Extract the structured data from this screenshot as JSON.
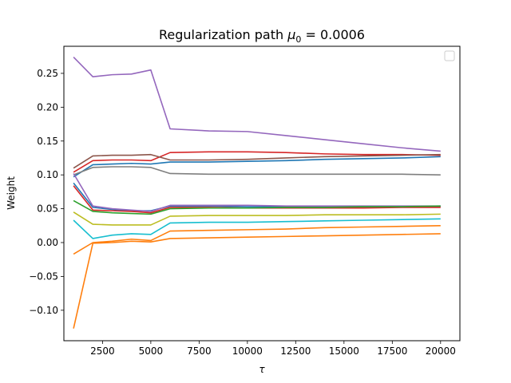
{
  "chart_data": {
    "type": "line",
    "title_prefix": "Regularization path ",
    "title_symbol": "μ",
    "title_subscript": "0",
    "title_suffix": " = 0.0006",
    "xlabel": "τ",
    "ylabel": "Weight",
    "xlim": [
      500,
      21000
    ],
    "ylim": [
      -0.145,
      0.29
    ],
    "x_ticks": [
      2500,
      5000,
      7500,
      10000,
      12500,
      15000,
      17500,
      20000
    ],
    "y_ticks": [
      -0.1,
      -0.05,
      0.0,
      0.05,
      0.1,
      0.15,
      0.2,
      0.25
    ],
    "x_tick_labels": [
      "2500",
      "5000",
      "7500",
      "10000",
      "12500",
      "15000",
      "17500",
      "20000"
    ],
    "y_tick_labels": [
      "−0.10",
      "−0.05",
      "0.00",
      "0.05",
      "0.10",
      "0.15",
      "0.20",
      "0.25"
    ],
    "legend": "upper right (empty)",
    "grid": false,
    "x": [
      1000,
      2000,
      3000,
      4000,
      5000,
      6000,
      8000,
      10000,
      12000,
      14000,
      16000,
      18000,
      20000
    ],
    "series": [
      {
        "color": "#9467bd",
        "values": [
          0.274,
          0.245,
          0.248,
          0.249,
          0.255,
          0.168,
          0.165,
          0.164,
          0.158,
          0.152,
          0.146,
          0.14,
          0.135
        ]
      },
      {
        "color": "#d62728",
        "values": [
          0.104,
          0.121,
          0.122,
          0.122,
          0.121,
          0.133,
          0.134,
          0.134,
          0.133,
          0.131,
          0.13,
          0.13,
          0.129
        ]
      },
      {
        "color": "#8c564b",
        "values": [
          0.11,
          0.128,
          0.129,
          0.129,
          0.13,
          0.122,
          0.122,
          0.123,
          0.125,
          0.127,
          0.128,
          0.129,
          0.13
        ]
      },
      {
        "color": "#1f77b4",
        "values": [
          0.097,
          0.115,
          0.116,
          0.117,
          0.116,
          0.119,
          0.119,
          0.12,
          0.121,
          0.123,
          0.124,
          0.125,
          0.127
        ]
      },
      {
        "color": "#7f7f7f",
        "values": [
          0.1,
          0.111,
          0.112,
          0.112,
          0.111,
          0.102,
          0.101,
          0.101,
          0.101,
          0.101,
          0.101,
          0.101,
          0.1
        ]
      },
      {
        "color": "#1f77b4",
        "values": [
          0.088,
          0.052,
          0.049,
          0.047,
          0.047,
          0.054,
          0.054,
          0.053,
          0.053,
          0.053,
          0.053,
          0.053,
          0.053
        ]
      },
      {
        "color": "#9467bd",
        "values": [
          0.102,
          0.054,
          0.05,
          0.048,
          0.046,
          0.055,
          0.055,
          0.055,
          0.054,
          0.054,
          0.054,
          0.054,
          0.054
        ]
      },
      {
        "color": "#d62728",
        "values": [
          0.084,
          0.048,
          0.047,
          0.046,
          0.044,
          0.052,
          0.052,
          0.051,
          0.051,
          0.051,
          0.051,
          0.052,
          0.052
        ]
      },
      {
        "color": "#2ca02c",
        "values": [
          0.062,
          0.046,
          0.044,
          0.043,
          0.042,
          0.05,
          0.051,
          0.051,
          0.052,
          0.052,
          0.053,
          0.053,
          0.054
        ]
      },
      {
        "color": "#bcbd22",
        "values": [
          0.045,
          0.027,
          0.026,
          0.026,
          0.026,
          0.039,
          0.04,
          0.04,
          0.04,
          0.041,
          0.041,
          0.041,
          0.042
        ]
      },
      {
        "color": "#17becf",
        "values": [
          0.033,
          0.006,
          0.011,
          0.013,
          0.012,
          0.029,
          0.03,
          0.03,
          0.031,
          0.032,
          0.033,
          0.034,
          0.035
        ]
      },
      {
        "color": "#ff7f0e",
        "values": [
          -0.017,
          0.0,
          0.002,
          0.005,
          0.003,
          0.017,
          0.018,
          0.019,
          0.02,
          0.022,
          0.023,
          0.024,
          0.025
        ]
      },
      {
        "color": "#ff7f0e",
        "values": [
          -0.127,
          -0.001,
          0.0,
          0.002,
          0.001,
          0.006,
          0.007,
          0.008,
          0.009,
          0.01,
          0.011,
          0.012,
          0.013
        ]
      }
    ]
  }
}
